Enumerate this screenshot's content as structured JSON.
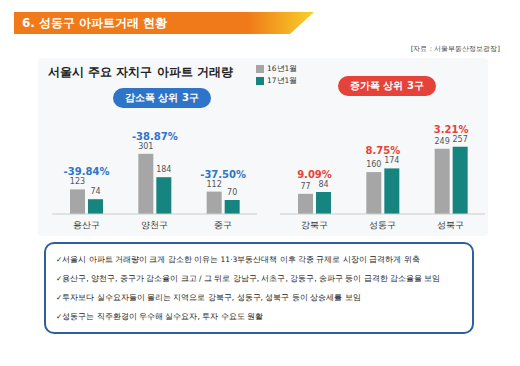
{
  "header": {
    "title": "6. 성동구 아파트거래 현황",
    "source": "[자료 : 서울부동산정보광장]"
  },
  "chart_data": [
    {
      "type": "bar",
      "title": "서울시 주요 자치구 아파트 거래량",
      "annotation": "감소폭 상위 3구",
      "color": "#2e75c9",
      "categories": [
        "용산구",
        "양천구",
        "중구"
      ],
      "series": [
        {
          "name": "16년1월",
          "color": "#a6a6a6",
          "values": [
            123,
            301,
            112
          ]
        },
        {
          "name": "17년1월",
          "color": "#16857f",
          "values": [
            74,
            184,
            70
          ]
        }
      ],
      "changes": {
        "values": [
          -39.84,
          -38.87,
          -37.5
        ],
        "value_labels": [
          "-39.84%",
          "-38.87%",
          "-37.50%"
        ]
      },
      "ylim": [
        0,
        380
      ],
      "data_labels": true,
      "tick_labels": "x",
      "grid": false,
      "legend": "top-right"
    },
    {
      "type": "bar",
      "annotation": "증가폭 상위 3구",
      "color": "#e5433a",
      "categories": [
        "강북구",
        "성동구",
        "성북구"
      ],
      "series": [
        {
          "name": "16년1월",
          "color": "#a6a6a6",
          "values": [
            77,
            160,
            249
          ]
        },
        {
          "name": "17년1월",
          "color": "#16857f",
          "values": [
            84,
            174,
            257
          ]
        }
      ],
      "changes": {
        "values": [
          9.09,
          8.75,
          3.21
        ],
        "value_labels": [
          "9.09%",
          "8.75%",
          "3.21%"
        ]
      },
      "ylim": [
        0,
        290
      ],
      "data_labels": true,
      "tick_labels": "x",
      "grid": false
    }
  ],
  "notes": [
    "✓서울시 아파트 거래량이 크게 감소한 이유는 11·3부동산대책 이후 각종 규제로 시장이 급격하게 위축",
    "✓용산구, 양천구, 중구가 감소율이 크고 / 그 뒤로 강남구, 서초구, 강동구, 송파구 등이 급격한 감소율을 보임",
    "✓투자보다 실수요자들이 몰리는 지역으로 강북구, 성동구, 성북구 등이 상승세를 보임",
    "✓성동구는 직주환경이 우수해 실수요자, 투자 수요도 원활"
  ]
}
